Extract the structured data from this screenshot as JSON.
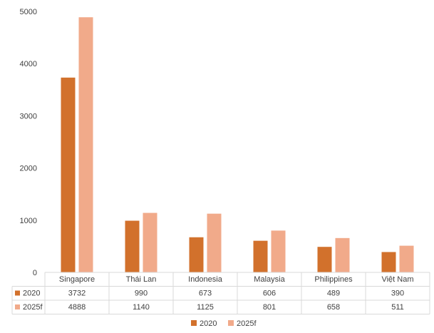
{
  "chart_data": {
    "type": "bar",
    "title": "",
    "xlabel": "",
    "ylabel": "",
    "ylim": [
      0,
      5000
    ],
    "yticks": [
      0,
      1000,
      2000,
      3000,
      4000,
      5000
    ],
    "grid": false,
    "legend_position": "bottom",
    "data_table": true,
    "categories": [
      "Singapore",
      "Thái Lan",
      "Indonesia",
      "Malaysia",
      "Philippines",
      "Việt Nam"
    ],
    "series": [
      {
        "name": "2020",
        "color": "#D2712C",
        "values": [
          3732,
          990,
          673,
          606,
          489,
          390
        ]
      },
      {
        "name": "2025f",
        "color": "#F1AA8A",
        "values": [
          4888,
          1140,
          1125,
          801,
          658,
          511
        ]
      }
    ]
  }
}
